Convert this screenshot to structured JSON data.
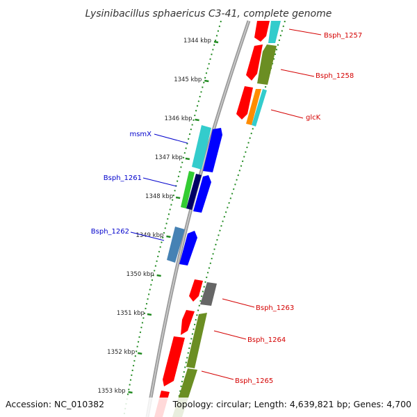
{
  "title": "Lysinibacillus sphaericus C3-41, complete genome",
  "footer": {
    "accession": "Accession: NC_010382",
    "topology": "Topology: circular; Length: 4,639,821 bp; Genes: 4,700"
  },
  "ticks": [
    "1344 kbp",
    "1345 kbp",
    "1346 kbp",
    "1347 kbp",
    "1348 kbp",
    "1349 kbp",
    "1350 kbp",
    "1351 kbp",
    "1352 kbp",
    "1353 kbp"
  ],
  "gene_labels": [
    {
      "name": "Bsph_1257",
      "color": "#d40000"
    },
    {
      "name": "Bsph_1258",
      "color": "#d40000"
    },
    {
      "name": "glcK",
      "color": "#d40000"
    },
    {
      "name": "msmX",
      "color": "#0000cc"
    },
    {
      "name": "Bsph_1261",
      "color": "#0000cc"
    },
    {
      "name": "Bsph_1262",
      "color": "#0000cc"
    },
    {
      "name": "Bsph_1263",
      "color": "#d40000"
    },
    {
      "name": "Bsph_1264",
      "color": "#d40000"
    },
    {
      "name": "Bsph_1265",
      "color": "#d40000"
    }
  ],
  "colors": {
    "red": "#ff0000",
    "cyan": "#33cccc",
    "olive": "#6b8e23",
    "orange": "#ff8c00",
    "blue": "#0000ff",
    "green": "#33cc33",
    "navy": "#000066",
    "steelblue": "#4682b4",
    "gray": "#666666",
    "backbone": "#888888",
    "tick_green": "#228b22"
  }
}
